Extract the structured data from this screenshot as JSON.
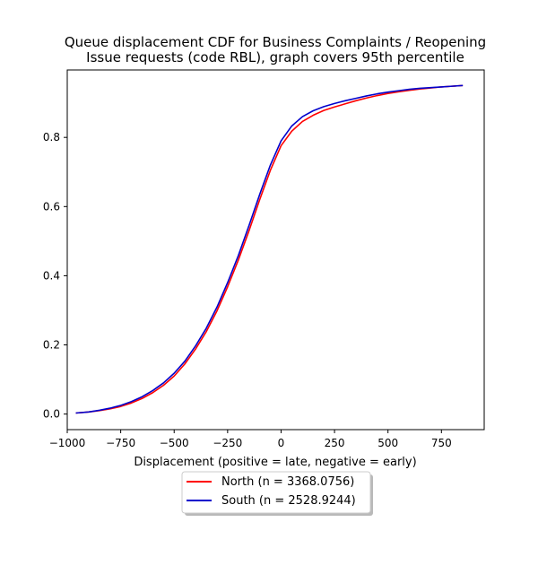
{
  "chart_data": {
    "type": "line",
    "title": "Queue displacement CDF for Business Complaints / Reopening\nIssue  requests (code RBL), graph covers 95th percentile",
    "xlabel": "Displacement (positive = late, negative = early)",
    "ylabel": "",
    "xlim": [
      -1000,
      950
    ],
    "ylim": [
      -0.045,
      0.995
    ],
    "x_ticks": [
      -1000,
      -750,
      -500,
      -250,
      0,
      250,
      500,
      750
    ],
    "x_tick_labels": [
      "−1000",
      "−750",
      "−500",
      "−250",
      "0",
      "250",
      "500",
      "750"
    ],
    "y_ticks": [
      0.0,
      0.2,
      0.4,
      0.6,
      0.8
    ],
    "y_tick_labels": [
      "0.0",
      "0.2",
      "0.4",
      "0.6",
      "0.8"
    ],
    "grid": false,
    "legend_position": "below plot, centered",
    "series": [
      {
        "name": "North (n = 3368.0756)",
        "color": "#ff0000",
        "x": [
          -960,
          -900,
          -850,
          -800,
          -750,
          -700,
          -650,
          -600,
          -550,
          -500,
          -450,
          -400,
          -350,
          -300,
          -250,
          -200,
          -150,
          -100,
          -50,
          0,
          50,
          100,
          150,
          200,
          250,
          300,
          350,
          400,
          450,
          500,
          550,
          600,
          650,
          700,
          750,
          800,
          850
        ],
        "y": [
          0.003,
          0.006,
          0.01,
          0.015,
          0.022,
          0.032,
          0.045,
          0.062,
          0.083,
          0.11,
          0.145,
          0.188,
          0.238,
          0.298,
          0.368,
          0.445,
          0.53,
          0.62,
          0.705,
          0.776,
          0.818,
          0.846,
          0.864,
          0.878,
          0.888,
          0.897,
          0.906,
          0.914,
          0.921,
          0.927,
          0.932,
          0.936,
          0.94,
          0.943,
          0.946,
          0.948,
          0.95
        ]
      },
      {
        "name": "South (n = 2528.9244)",
        "color": "#0000cc",
        "x": [
          -960,
          -900,
          -850,
          -800,
          -750,
          -700,
          -650,
          -600,
          -550,
          -500,
          -450,
          -400,
          -350,
          -300,
          -250,
          -200,
          -150,
          -100,
          -50,
          0,
          50,
          100,
          150,
          200,
          250,
          300,
          350,
          400,
          450,
          500,
          550,
          600,
          650,
          700,
          750,
          800,
          850
        ],
        "y": [
          0.003,
          0.006,
          0.011,
          0.017,
          0.025,
          0.036,
          0.05,
          0.068,
          0.09,
          0.118,
          0.153,
          0.197,
          0.248,
          0.309,
          0.38,
          0.458,
          0.545,
          0.635,
          0.72,
          0.79,
          0.833,
          0.86,
          0.877,
          0.889,
          0.898,
          0.906,
          0.913,
          0.92,
          0.926,
          0.931,
          0.935,
          0.939,
          0.942,
          0.944,
          0.946,
          0.948,
          0.95
        ]
      }
    ]
  }
}
